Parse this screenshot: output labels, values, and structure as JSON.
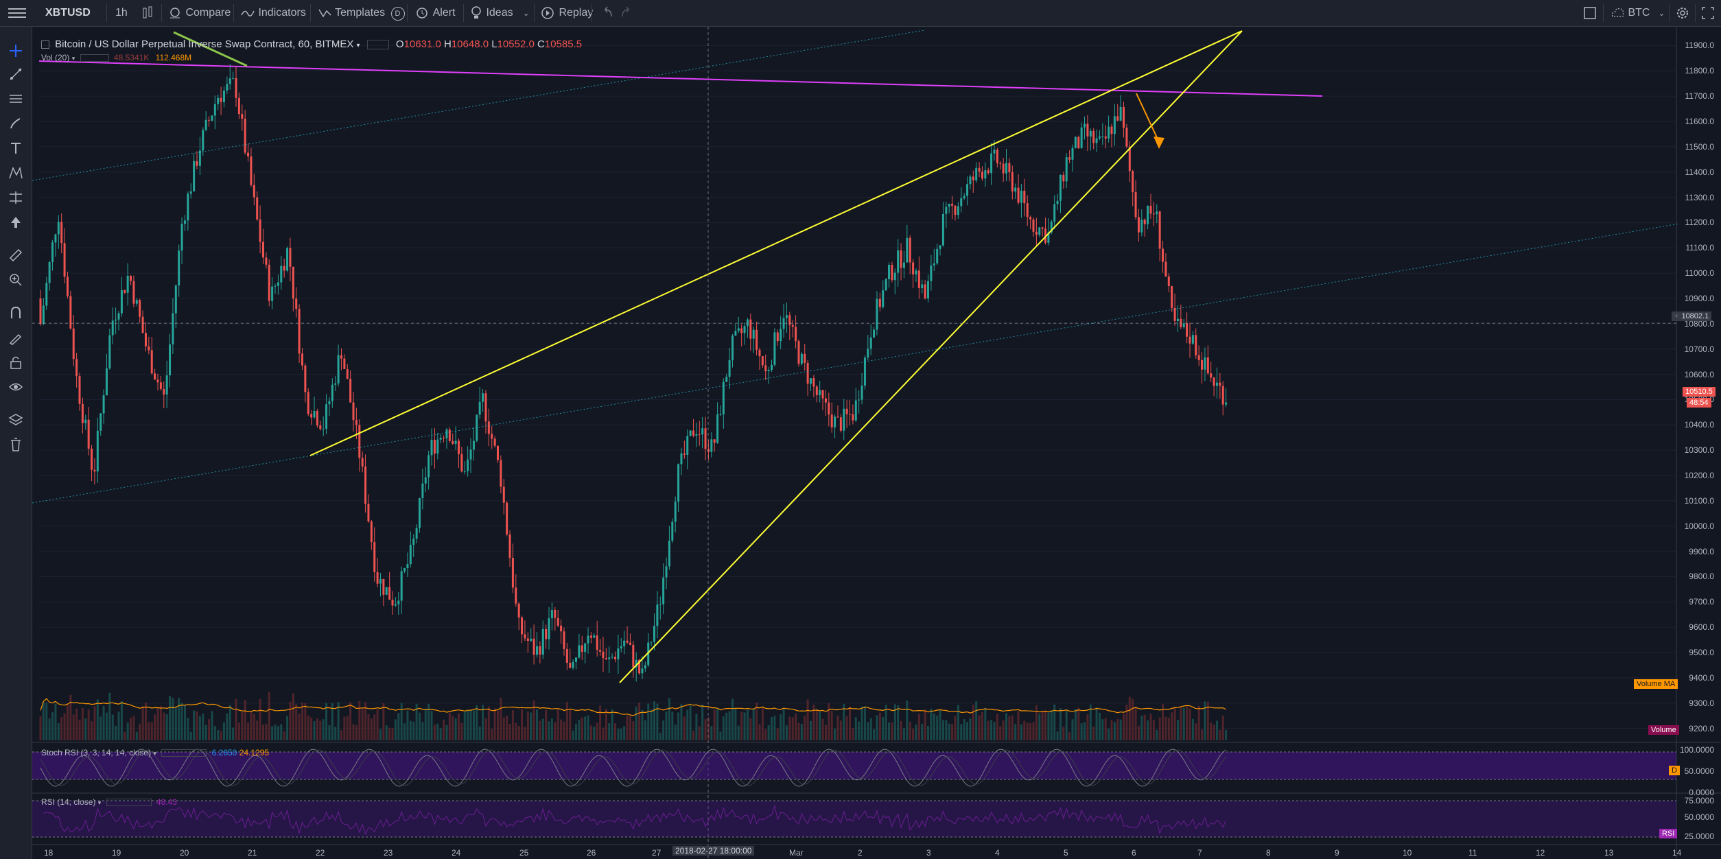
{
  "toolbar": {
    "symbol": "XBTUSD",
    "interval": "1h",
    "compare": "Compare",
    "indicators": "Indicators",
    "templates": "Templates",
    "templates_badge": "D",
    "alert": "Alert",
    "ideas": "Ideas",
    "replay": "Replay",
    "currency": "BTC"
  },
  "legend": {
    "title": "Bitcoin / US Dollar Perpetual Inverse Swap Contract, 60, BITMEX",
    "o_label": "O",
    "o": "10631.0",
    "h_label": "H",
    "h": "10648.0",
    "l_label": "L",
    "l": "10552.0",
    "c_label": "C",
    "c": "10585.5",
    "vol_label": "Vol (20)",
    "vol_value": "48.5341K",
    "vol_ma": "112.468M"
  },
  "indicators": {
    "stoch_label": "Stoch RSI (3, 3, 14, 14, close)",
    "stoch_k": "6.2650",
    "stoch_d": "24.1295",
    "rsi_label": "RSI (14, close)",
    "rsi_value": "48.43"
  },
  "price_axis": [
    "11900.0",
    "11800.0",
    "11700.0",
    "11600.0",
    "11500.0",
    "11400.0",
    "11300.0",
    "11200.0",
    "11100.0",
    "11000.0",
    "10900.0",
    "10800.0",
    "10700.0",
    "10600.0",
    "10500.0",
    "10400.0",
    "10300.0",
    "10200.0",
    "10100.0",
    "10000.0",
    "9900.0",
    "9800.0",
    "9700.0",
    "9600.0",
    "9500.0",
    "9400.0",
    "9300.0",
    "9200.0"
  ],
  "stoch_axis": [
    "100.0000",
    "50.0000",
    "0.0000"
  ],
  "rsi_axis": [
    "75.0000",
    "50.0000",
    "25.0000"
  ],
  "time_axis": [
    "18",
    "19",
    "20",
    "21",
    "22",
    "23",
    "24",
    "25",
    "26",
    "27",
    "2018-02-27 18:00:00",
    "Mar",
    "2",
    "3",
    "4",
    "5",
    "6",
    "7",
    "8",
    "9",
    "10",
    "11",
    "12",
    "13",
    "14"
  ],
  "tags": {
    "crosshair_price": "10802.1",
    "last_price": "10510.5",
    "countdown": "48:54",
    "volume_ma": "Volume MA",
    "volume": "Volume",
    "stoch_tag": "D",
    "rsi_tag": "RSI"
  },
  "colors": {
    "background": "#131722",
    "up": "#26a69a",
    "down": "#ef5350",
    "trendline_yellow": "#ffff33",
    "resistance_magenta": "#e040fb",
    "channel_teal": "#26c6da",
    "arrow_orange": "#ff9800",
    "indicator_band": "#4a148c"
  },
  "chart_data": {
    "type": "candlestick",
    "title": "Bitcoin / US Dollar Perpetual Inverse Swap Contract, 60, BITMEX",
    "x_unit": "day (Feb 18 - Mar 7, 2018)",
    "ylim": [
      9150,
      11950
    ],
    "closes": [
      10800,
      11250,
      10600,
      10200,
      10800,
      11000,
      10700,
      10500,
      11200,
      11500,
      11700,
      11750,
      11300,
      10900,
      11100,
      10500,
      10400,
      10700,
      10300,
      9800,
      9700,
      9900,
      10300,
      10400,
      10200,
      10500,
      10200,
      9600,
      9500,
      9650,
      9400,
      9600,
      9450,
      9550,
      9400,
      9700,
      10200,
      10400,
      10300,
      10700,
      10800,
      10600,
      10850,
      10650,
      10500,
      10400,
      10450,
      10800,
      11000,
      11100,
      10900,
      11200,
      11300,
      11400,
      11450,
      11350,
      11200,
      11150,
      11450,
      11550,
      11500,
      11650,
      11200,
      11250,
      10800,
      10750,
      10600,
      10510
    ],
    "key_levels": {
      "crosshair_price": 10802.1,
      "last_price": 10510.5
    }
  }
}
